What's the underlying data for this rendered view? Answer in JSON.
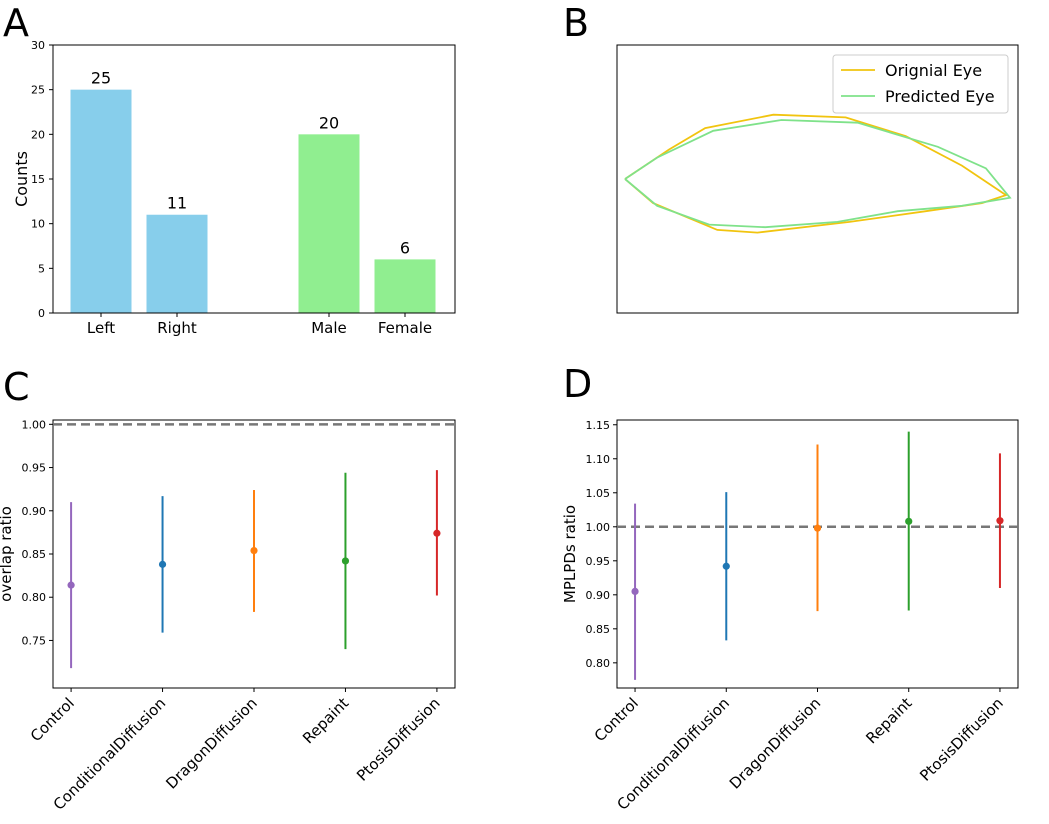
{
  "panels": {
    "a": "A",
    "b": "B",
    "c": "C",
    "d": "D"
  },
  "chart_data": [
    {
      "id": "A",
      "type": "bar",
      "categories": [
        "Left",
        "Right",
        "Male",
        "Female"
      ],
      "values": [
        25,
        11,
        20,
        6
      ],
      "colors": [
        "#87ceeb",
        "#87ceeb",
        "#90ee90",
        "#90ee90"
      ],
      "data_labels": [
        "25",
        "11",
        "20",
        "6"
      ],
      "title": "",
      "xlabel": "",
      "ylabel": "Counts",
      "ylim": [
        0,
        30
      ],
      "yticks": [
        0,
        5,
        10,
        15,
        20,
        25,
        30
      ]
    },
    {
      "id": "B",
      "type": "line",
      "title": "",
      "legend_position": "top-right",
      "axes": "hidden ticks",
      "xlim": [
        0,
        100
      ],
      "ylim": [
        0,
        100
      ],
      "series": [
        {
          "name": "Orignial Eye",
          "color": "#f1c40f",
          "points": [
            [
              2,
              50
            ],
            [
              13,
              61
            ],
            [
              22,
              69
            ],
            [
              39,
              74
            ],
            [
              57,
              73
            ],
            [
              72,
              66
            ],
            [
              86,
              55
            ],
            [
              97,
              44
            ],
            [
              91,
              41
            ],
            [
              77,
              38
            ],
            [
              58,
              34
            ],
            [
              35,
              30
            ],
            [
              25,
              31
            ],
            [
              9,
              41
            ],
            [
              2,
              50
            ]
          ]
        },
        {
          "name": "Predicted Eye",
          "color": "#7fe28a",
          "points": [
            [
              2,
              50
            ],
            [
              10,
              58
            ],
            [
              24,
              68
            ],
            [
              41,
              72
            ],
            [
              60,
              71
            ],
            [
              80,
              62
            ],
            [
              92,
              54
            ],
            [
              98,
              43
            ],
            [
              86,
              40
            ],
            [
              70,
              38
            ],
            [
              55,
              34
            ],
            [
              37,
              32
            ],
            [
              23,
              33
            ],
            [
              10,
              40
            ],
            [
              2,
              50
            ]
          ]
        }
      ]
    },
    {
      "id": "C",
      "type": "scatter",
      "title": "",
      "xlabel": "",
      "ylabel": "overlap ratio",
      "categories": [
        "Control",
        "ConditionalDiffusion",
        "DragonDiffusion",
        "Repaint",
        "PtosisDiffusion"
      ],
      "means": [
        0.814,
        0.838,
        0.854,
        0.842,
        0.874
      ],
      "lower": [
        0.718,
        0.759,
        0.783,
        0.74,
        0.802
      ],
      "upper": [
        0.91,
        0.917,
        0.924,
        0.944,
        0.947
      ],
      "colors": [
        "#9467bd",
        "#1f77b4",
        "#ff7f0e",
        "#2ca02c",
        "#d62728"
      ],
      "reference_line": 1.0,
      "ylim": [
        0.695,
        1.005
      ],
      "yticks": [
        0.75,
        0.8,
        0.85,
        0.9,
        0.95,
        1.0
      ],
      "ytick_labels": [
        "0.75",
        "0.80",
        "0.85",
        "0.90",
        "0.95",
        "1.00"
      ]
    },
    {
      "id": "D",
      "type": "scatter",
      "title": "",
      "xlabel": "",
      "ylabel": "MPLPDs ratio",
      "categories": [
        "Control",
        "ConditionalDiffusion",
        "DragonDiffusion",
        "Repaint",
        "PtosisDiffusion"
      ],
      "means": [
        0.905,
        0.942,
        0.998,
        1.008,
        1.009
      ],
      "lower": [
        0.775,
        0.833,
        0.876,
        0.877,
        0.91
      ],
      "upper": [
        1.034,
        1.051,
        1.121,
        1.14,
        1.108
      ],
      "colors": [
        "#9467bd",
        "#1f77b4",
        "#ff7f0e",
        "#2ca02c",
        "#d62728"
      ],
      "reference_line": 1.0,
      "ylim": [
        0.763,
        1.157
      ],
      "yticks": [
        0.8,
        0.85,
        0.9,
        0.95,
        1.0,
        1.05,
        1.1,
        1.15
      ],
      "ytick_labels": [
        "0.80",
        "0.85",
        "0.90",
        "0.95",
        "1.00",
        "1.05",
        "1.10",
        "1.15"
      ]
    }
  ]
}
